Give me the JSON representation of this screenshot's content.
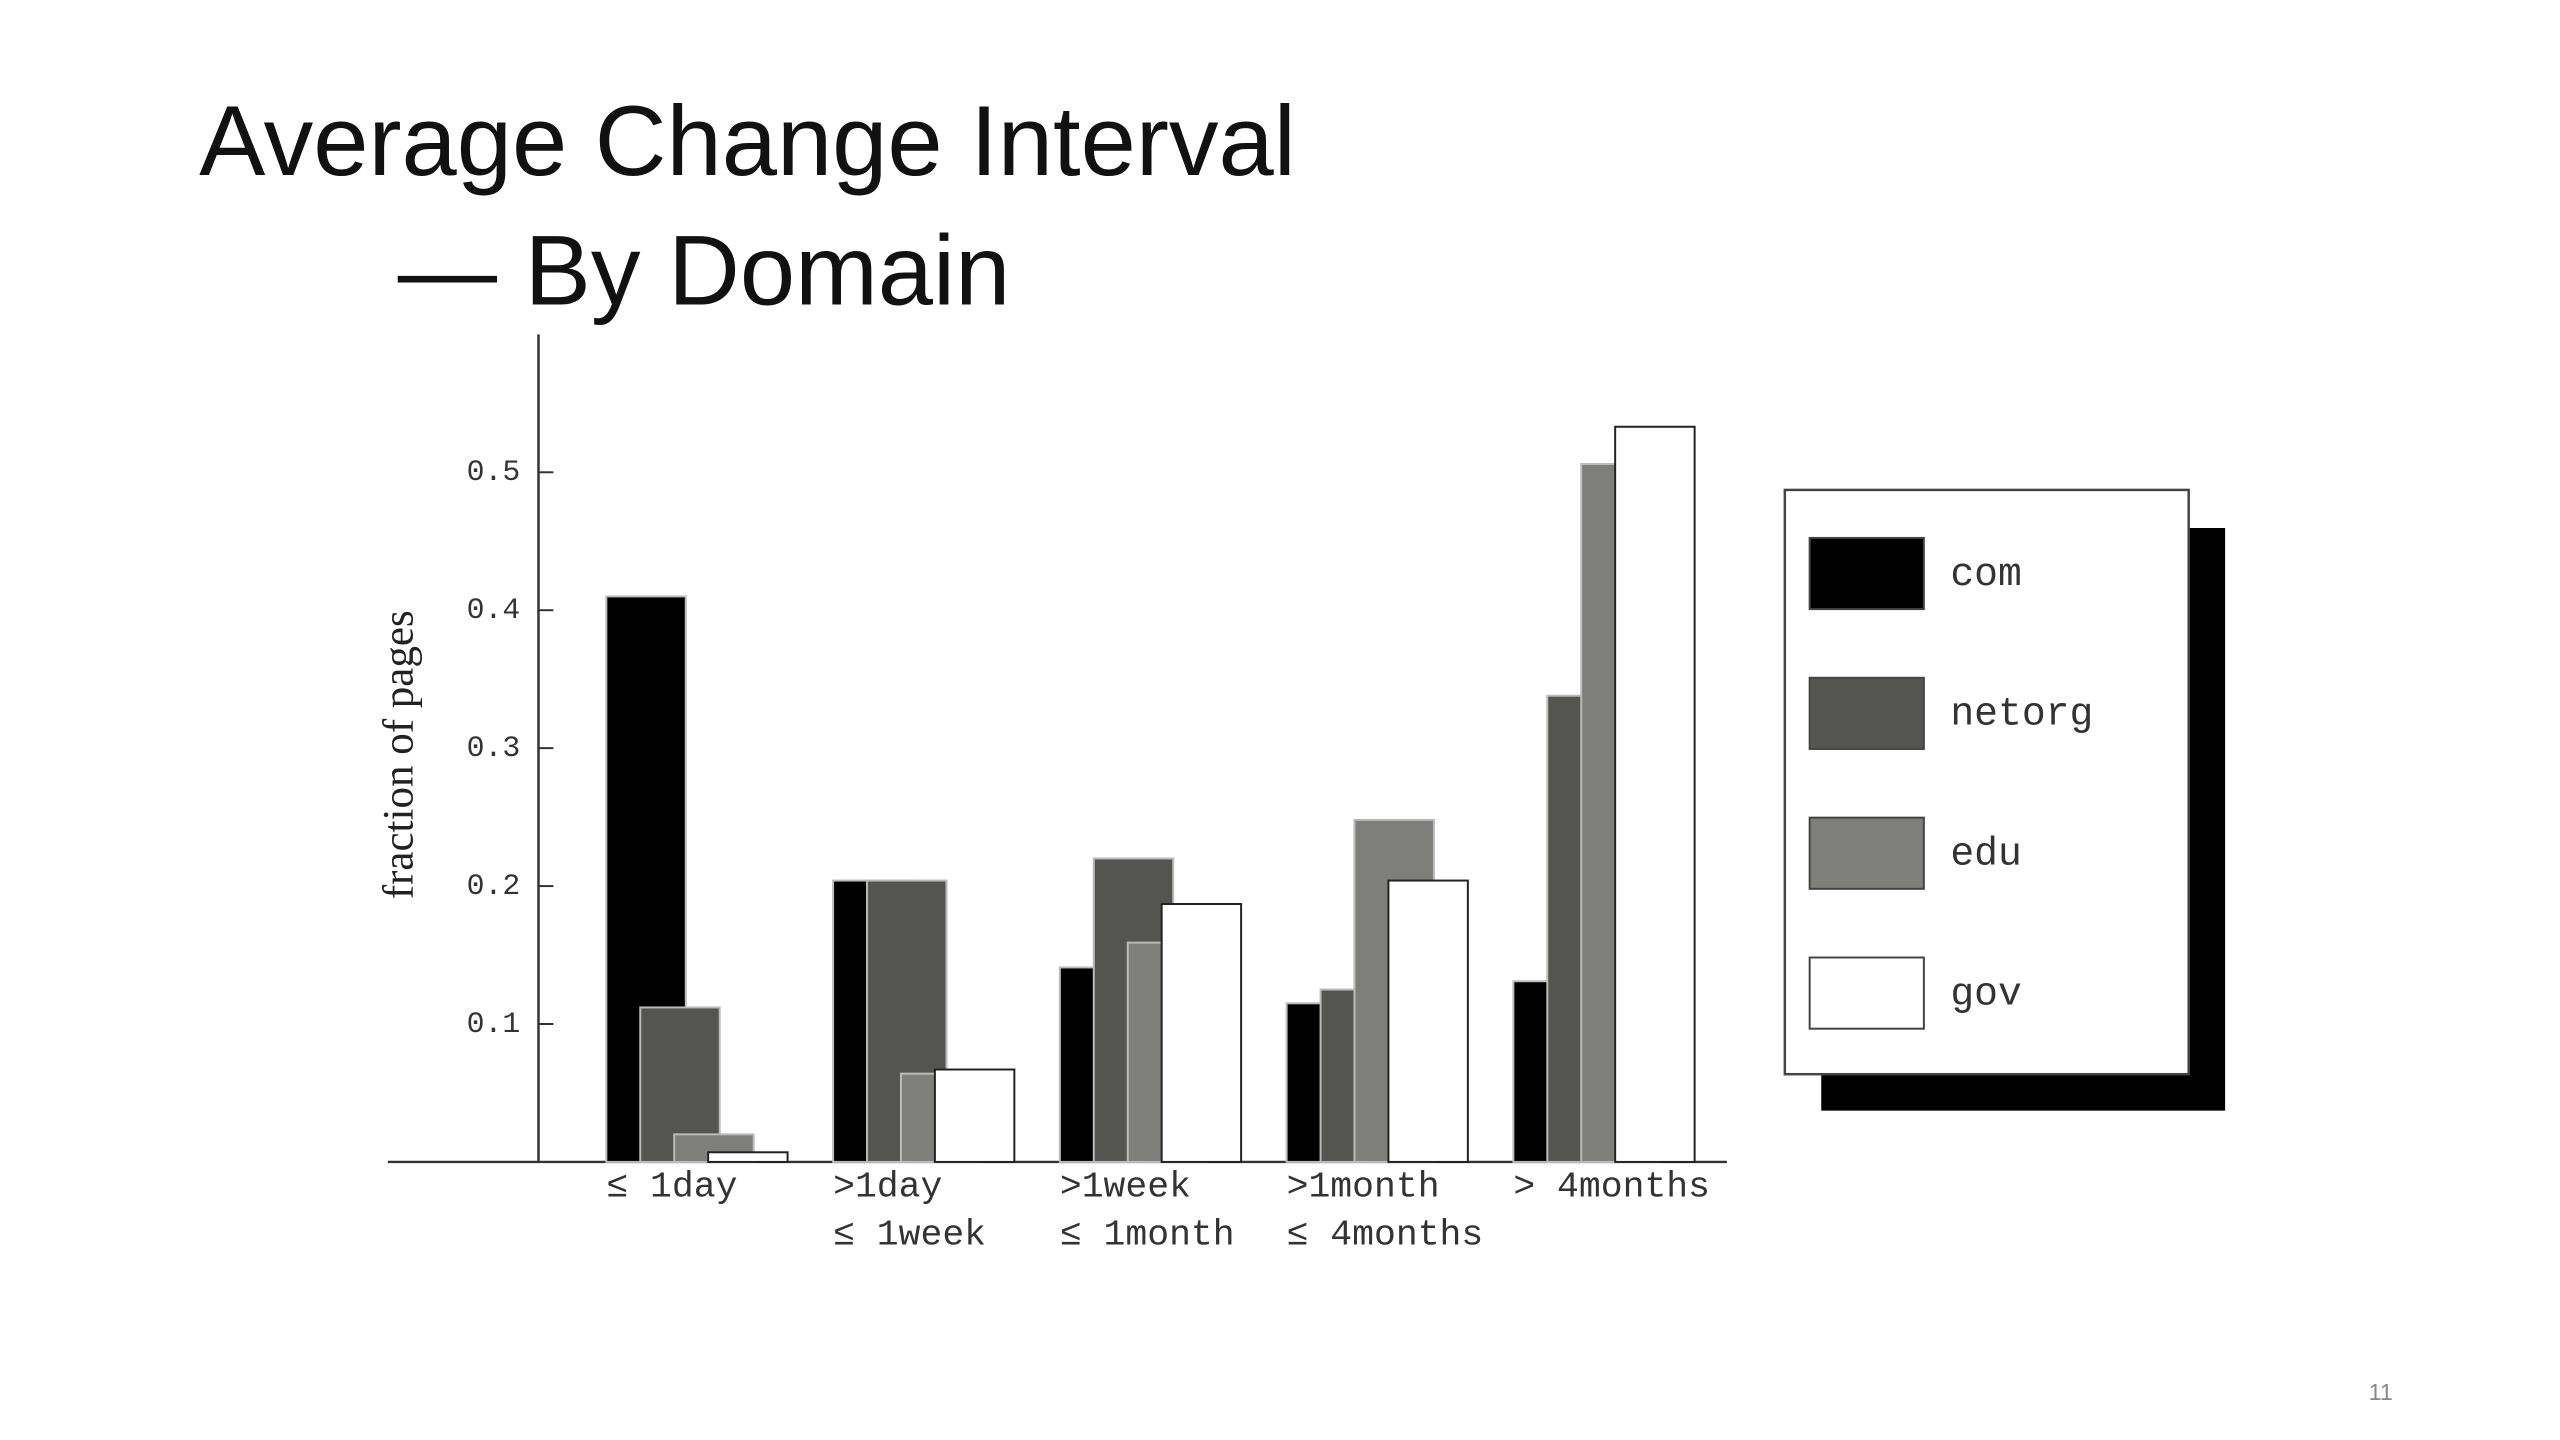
{
  "chart_data": {
    "type": "bar",
    "title": "Average Change Interval",
    "subtitle": "— By Domain",
    "y_label": "fraction of pages",
    "categories": [
      [
        "≤ 1day"
      ],
      [
        ">1day",
        "≤ 1week"
      ],
      [
        ">1week",
        "≤ 1month"
      ],
      [
        ">1month",
        "≤ 4months"
      ],
      [
        "> 4months"
      ]
    ],
    "series": [
      {
        "name": "com",
        "color": "#000000",
        "values": [
          0.41,
          0.204,
          0.141,
          0.115,
          0.131
        ]
      },
      {
        "name": "netorg",
        "color": "#545450",
        "values": [
          0.112,
          0.204,
          0.22,
          0.125,
          0.338
        ]
      },
      {
        "name": "edu",
        "color": "#7e7e7b",
        "values": [
          0.02,
          0.064,
          0.159,
          0.248,
          0.506
        ]
      },
      {
        "name": "gov",
        "color": "#ffffff",
        "values": [
          0.007,
          0.067,
          0.187,
          0.204,
          0.533
        ]
      }
    ],
    "ylim": [
      0,
      0.6
    ],
    "yticks": [
      0.1,
      0.2,
      0.3,
      0.4,
      0.5
    ],
    "legend": "right",
    "page_number": "11"
  }
}
